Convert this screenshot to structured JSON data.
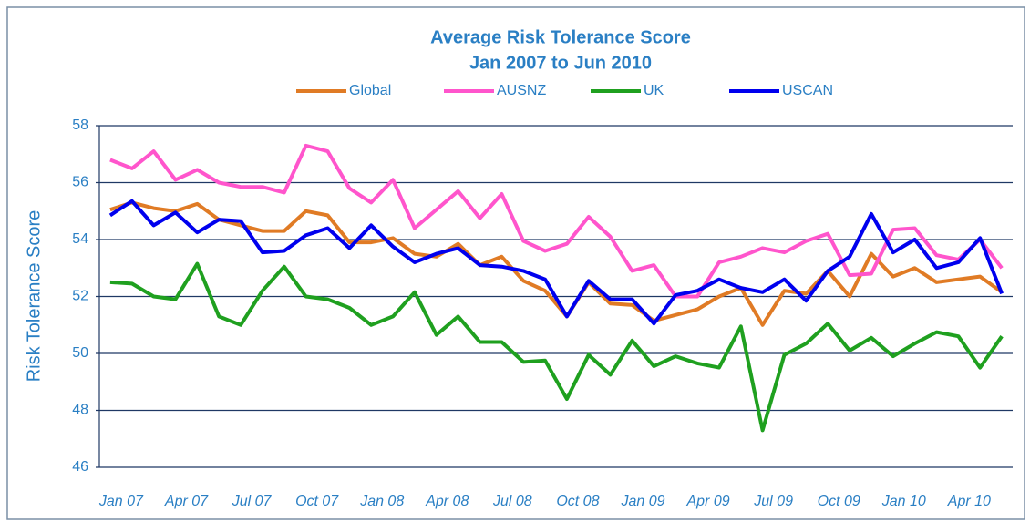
{
  "chart_data": {
    "type": "line",
    "title": "Average Risk Tolerance Score",
    "subtitle": "Jan 2007 to Jun 2010",
    "y_label": "Risk Tolerance Score",
    "categories": [
      "Jan 07",
      null,
      null,
      "Apr 07",
      null,
      null,
      "Jul 07",
      null,
      null,
      "Oct 07",
      null,
      null,
      "Jan 08",
      null,
      null,
      "Apr 08",
      null,
      null,
      "Jul 08",
      null,
      null,
      "Oct 08",
      null,
      null,
      "Jan 09",
      null,
      null,
      "Apr 09",
      null,
      null,
      "Jul 09",
      null,
      null,
      "Oct 09",
      null,
      null,
      "Jan 10",
      null,
      null,
      "Apr 10",
      null,
      null
    ],
    "series": [
      {
        "name": "Global",
        "color": "#e07b25",
        "values": [
          55.05,
          55.3,
          55.1,
          55.0,
          55.25,
          54.7,
          54.5,
          54.3,
          54.3,
          55.0,
          54.85,
          53.9,
          53.9,
          54.05,
          53.5,
          53.4,
          53.85,
          53.1,
          53.4,
          52.55,
          52.2,
          51.3,
          52.5,
          51.75,
          51.7,
          51.15,
          51.35,
          51.55,
          52.0,
          52.3,
          51.0,
          52.2,
          52.1,
          52.9,
          52.0,
          53.5,
          52.7,
          53.0,
          52.5,
          52.6,
          52.7,
          52.15
        ]
      },
      {
        "name": "AUSNZ",
        "color": "#ff55cc",
        "values": [
          56.8,
          56.5,
          57.1,
          56.1,
          56.45,
          56.0,
          55.85,
          55.85,
          55.65,
          57.3,
          57.1,
          55.8,
          55.3,
          56.1,
          54.4,
          55.05,
          55.7,
          54.75,
          55.6,
          53.95,
          53.6,
          53.85,
          54.8,
          54.1,
          52.9,
          53.1,
          52.0,
          52.0,
          53.2,
          53.4,
          53.7,
          53.55,
          53.95,
          54.2,
          52.75,
          52.8,
          54.35,
          54.4,
          53.45,
          53.3,
          54.0,
          53.0
        ]
      },
      {
        "name": "UK",
        "color": "#1fa01f",
        "values": [
          52.5,
          52.45,
          52.0,
          51.9,
          53.15,
          51.3,
          51.0,
          52.2,
          53.05,
          52.0,
          51.9,
          51.6,
          51.0,
          51.3,
          52.15,
          50.65,
          51.3,
          50.4,
          50.4,
          49.7,
          49.75,
          48.4,
          49.95,
          49.25,
          50.45,
          49.55,
          49.9,
          49.65,
          49.5,
          50.95,
          47.3,
          49.95,
          50.35,
          51.05,
          50.1,
          50.55,
          49.9,
          50.35,
          50.75,
          50.6,
          49.5,
          50.6
        ]
      },
      {
        "name": "USCAN",
        "color": "#0000ee",
        "values": [
          54.85,
          55.35,
          54.5,
          54.95,
          54.25,
          54.7,
          54.65,
          53.55,
          53.6,
          54.15,
          54.4,
          53.7,
          54.5,
          53.75,
          53.2,
          53.5,
          53.7,
          53.1,
          53.05,
          52.9,
          52.6,
          51.3,
          52.55,
          51.9,
          51.9,
          51.05,
          52.05,
          52.2,
          52.6,
          52.3,
          52.15,
          52.6,
          51.85,
          52.9,
          53.4,
          54.9,
          53.55,
          54.0,
          53.0,
          53.2,
          54.05,
          52.1
        ]
      }
    ],
    "ylim": [
      46,
      58
    ],
    "yticks": [
      46,
      48,
      50,
      52,
      54,
      56,
      58
    ],
    "grid": true,
    "legend": "top"
  }
}
